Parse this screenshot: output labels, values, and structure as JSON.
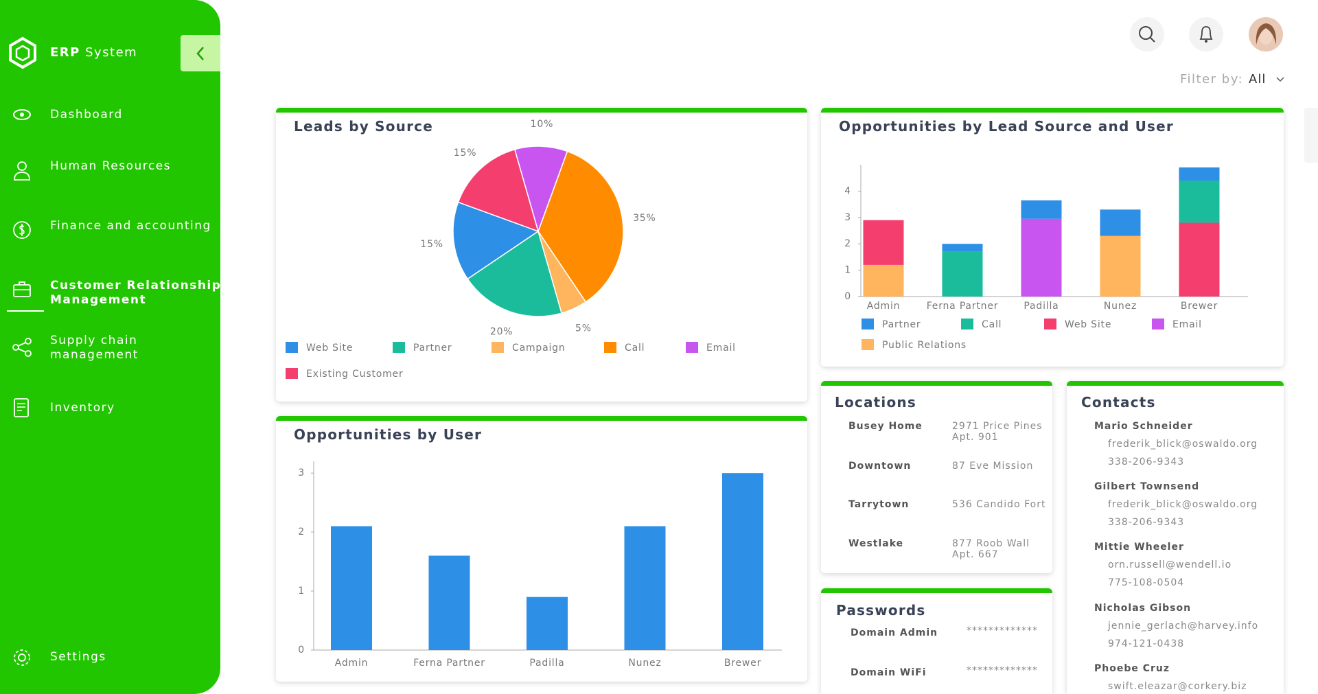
{
  "sidebar": {
    "brand": {
      "name": "ERP",
      "suffix": "System"
    },
    "menu": [
      "Dashboard",
      "Human Resources",
      "Finance and accounting",
      [
        "Customer Relationship",
        "Management"
      ],
      [
        "Supply chain",
        "management"
      ],
      "Inventory"
    ],
    "settings": "Settings"
  },
  "header": {
    "filter_label": "Filter by:",
    "filter_value": "All"
  },
  "chart_data": [
    {
      "type": "pie",
      "title": "Leads by Source",
      "categories": [
        "Web Site",
        "Partner",
        "Campaign",
        "Call",
        "Email",
        "Existing Customer"
      ],
      "values": [
        15,
        20,
        5,
        35,
        10,
        15
      ],
      "value_labels": [
        "15%",
        "20%",
        "5%",
        "35%",
        "10%",
        "15%"
      ],
      "colors": [
        "#2e8fe6",
        "#1abc9c",
        "#ffb45e",
        "#ff8c00",
        "#c855f0",
        "#f43f6e"
      ]
    },
    {
      "type": "bar",
      "stacked": true,
      "title": "Opportunities by Lead Source and User",
      "categories": [
        "Admin",
        "Ferna Partner",
        "Padilla",
        "Nunez",
        "Brewer"
      ],
      "series": [
        {
          "name": "Partner",
          "color": "#2e8fe6",
          "values": [
            0,
            0.3,
            0.7,
            1,
            0.5
          ]
        },
        {
          "name": "Call",
          "color": "#1abc9c",
          "values": [
            0,
            1.7,
            0,
            0,
            1.6
          ]
        },
        {
          "name": "Web Site",
          "color": "#f43f6e",
          "values": [
            1.7,
            0,
            0,
            0,
            2.8
          ]
        },
        {
          "name": "Email",
          "color": "#c855f0",
          "values": [
            0,
            0,
            2.95,
            0,
            0
          ]
        },
        {
          "name": "Public Relations",
          "color": "#ffb45e",
          "values": [
            1.2,
            0,
            0,
            2.3,
            0
          ]
        }
      ],
      "ylim": [
        0,
        5
      ],
      "yticks": [
        0,
        1,
        2,
        3,
        4
      ]
    },
    {
      "type": "bar",
      "title": "Opportunities by User",
      "categories": [
        "Admin",
        "Ferna Partner",
        "Padilla",
        "Nunez",
        "Brewer"
      ],
      "values": [
        2.1,
        1.6,
        0.9,
        2.1,
        3.0
      ],
      "color": "#2e8fe6",
      "ylim": [
        0,
        3.2
      ],
      "yticks": [
        0,
        1,
        2,
        3
      ]
    }
  ],
  "locations": {
    "title": "Locations",
    "rows": [
      {
        "name": "Busey Home",
        "address": [
          "2971 Price Pines",
          "Apt. 901"
        ]
      },
      {
        "name": "Downtown",
        "address": [
          "87 Eve Mission"
        ]
      },
      {
        "name": "Tarrytown",
        "address": [
          "536 Candido Fort"
        ]
      },
      {
        "name": "Westlake",
        "address": [
          "877 Roob Wall",
          "Apt. 667"
        ]
      }
    ]
  },
  "passwords": {
    "title": "Passwords",
    "rows": [
      {
        "name": "Domain Admin",
        "value": "*************"
      },
      {
        "name": "Domain WiFi",
        "value": "*************"
      }
    ]
  },
  "contacts": {
    "title": "Contacts",
    "rows": [
      {
        "name": "Mario Schneider",
        "email": "frederik_blick@oswaldo.org",
        "phone": "338-206-9343"
      },
      {
        "name": "Gilbert Townsend",
        "email": "frederik_blick@oswaldo.org",
        "phone": "338-206-9343"
      },
      {
        "name": "Mittie Wheeler",
        "email": "orn.russell@wendell.io",
        "phone": "775-108-0504"
      },
      {
        "name": "Nicholas Gibson",
        "email": "jennie_gerlach@harvey.info",
        "phone": "974-121-0438"
      },
      {
        "name": "Phoebe Cruz",
        "email": "swift.eleazar@corkery.biz"
      }
    ]
  }
}
